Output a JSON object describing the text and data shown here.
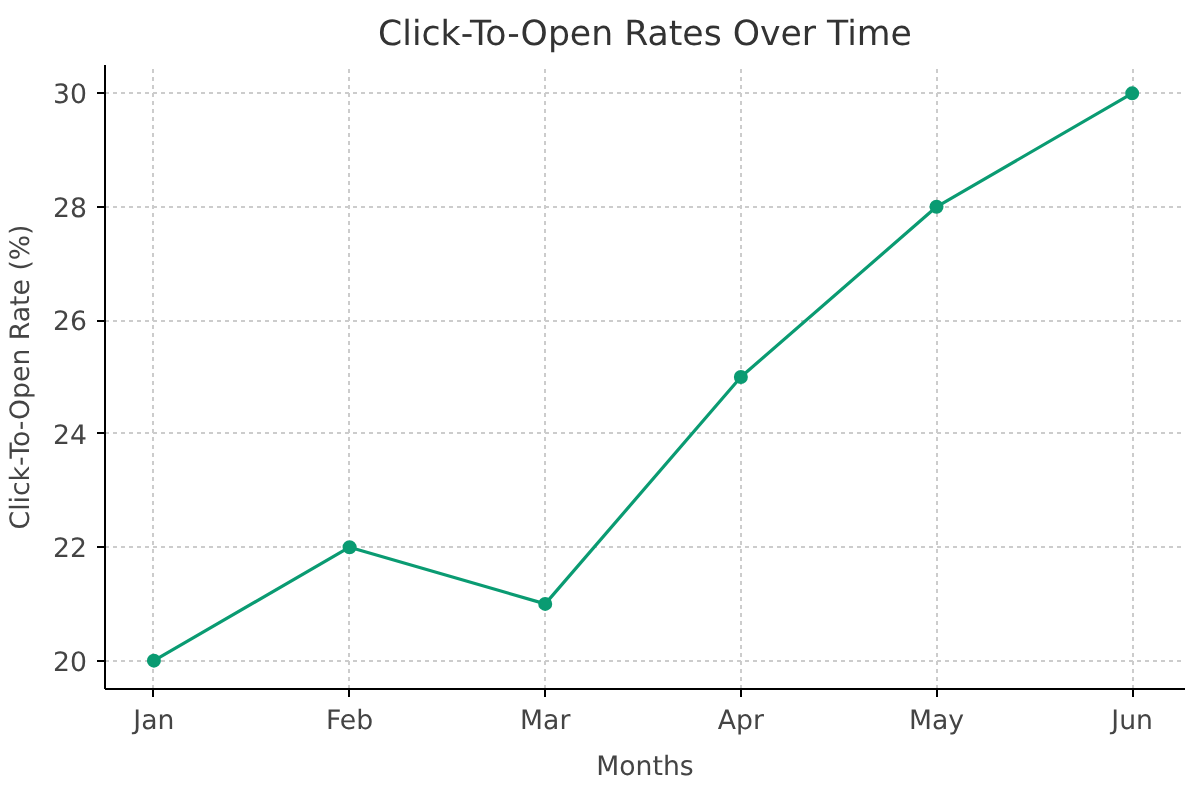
{
  "chart_data": {
    "type": "line",
    "title": "Click-To-Open Rates Over Time",
    "xlabel": "Months",
    "ylabel": "Click-To-Open Rate (%)",
    "categories": [
      "Jan",
      "Feb",
      "Mar",
      "Apr",
      "May",
      "Jun"
    ],
    "series": [
      {
        "color": "#0a9b72",
        "values": [
          20,
          22,
          21,
          25,
          28,
          30
        ]
      }
    ],
    "ylim": [
      19.5,
      30.5
    ],
    "yticks": [
      20,
      22,
      24,
      26,
      28,
      30
    ],
    "grid": true,
    "marker": "circle",
    "line_style": "solid"
  }
}
